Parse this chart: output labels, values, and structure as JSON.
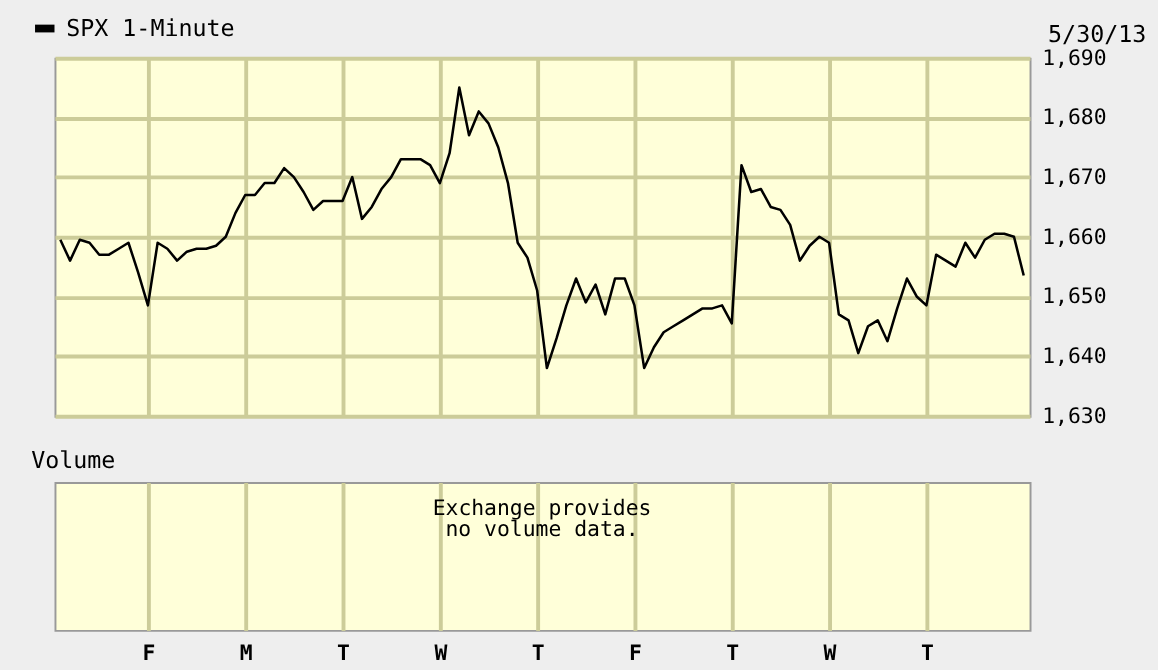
{
  "chart_data": [
    {
      "type": "line",
      "annotations": [
        "5/30/13"
      ],
      "legend": "top left",
      "grid": true,
      "tick_labels": "y",
      "categories": [
        null,
        null,
        null,
        null,
        null,
        null,
        null,
        null,
        null,
        "F",
        null,
        null,
        null,
        null,
        null,
        null,
        null,
        null,
        null,
        "M",
        null,
        null,
        null,
        null,
        null,
        null,
        null,
        null,
        null,
        "T",
        null,
        null,
        null,
        null,
        null,
        null,
        null,
        null,
        null,
        "W",
        null,
        null,
        null,
        null,
        null,
        null,
        null,
        null,
        null,
        "T",
        null,
        null,
        null,
        null,
        null,
        null,
        null,
        null,
        null,
        "F",
        null,
        null,
        null,
        null,
        null,
        null,
        null,
        null,
        null,
        "T",
        null,
        null,
        null,
        null,
        null,
        null,
        null,
        null,
        null,
        "W",
        null,
        null,
        null,
        null,
        null,
        null,
        null,
        null,
        null,
        "T",
        null,
        null,
        null,
        null,
        null,
        null,
        null,
        null,
        null,
        null
      ],
      "ylim": [
        1630,
        1690
      ],
      "yticks": [
        {
          "value": 1630,
          "label": "1,630"
        },
        {
          "value": 1640,
          "label": "1,640"
        },
        {
          "value": 1650,
          "label": "1,650"
        },
        {
          "value": 1660,
          "label": "1,660"
        },
        {
          "value": 1670,
          "label": "1,670"
        },
        {
          "value": 1680,
          "label": "1,680"
        },
        {
          "value": 1690,
          "label": "1,690"
        }
      ],
      "series": [
        {
          "name": "SPX 1-Minute",
          "color": "#000000",
          "values": [
            1659.5,
            1656,
            1659.5,
            1659,
            1657,
            1657,
            1658,
            1659,
            1654,
            1648.5,
            1659,
            1658,
            1656,
            1657.5,
            1658,
            1658,
            1658.5,
            1660,
            1664,
            1667,
            1667,
            1669,
            1669,
            1671.5,
            1670,
            1667.5,
            1664.5,
            1666,
            1666,
            1666,
            1670,
            1663,
            1665,
            1668,
            1670,
            1673,
            1673,
            1673,
            1672,
            1669,
            1674,
            1685,
            1677,
            1681,
            1679,
            1675,
            1669,
            1659,
            1656.5,
            1651,
            1638,
            1643,
            1648.5,
            1653,
            1649,
            1652,
            1647,
            1653,
            1653,
            1648.5,
            1638,
            1641.5,
            1644,
            1645,
            1646,
            1647,
            1648,
            1648,
            1648.5,
            1645.5,
            1672,
            1667.5,
            1668,
            1665,
            1664.5,
            1662,
            1656,
            1658.5,
            1660,
            1659,
            1647,
            1646,
            1640.5,
            1645,
            1646,
            1642.5,
            1648,
            1653,
            1650,
            1648.5,
            1657,
            1656,
            1655,
            1659,
            1656.5,
            1659.5,
            1660.5,
            1660.5,
            1660,
            1653.5
          ]
        }
      ]
    },
    {
      "type": "other",
      "title": "Volume",
      "annotations": [
        "Exchange provides\nno volume data."
      ]
    }
  ]
}
